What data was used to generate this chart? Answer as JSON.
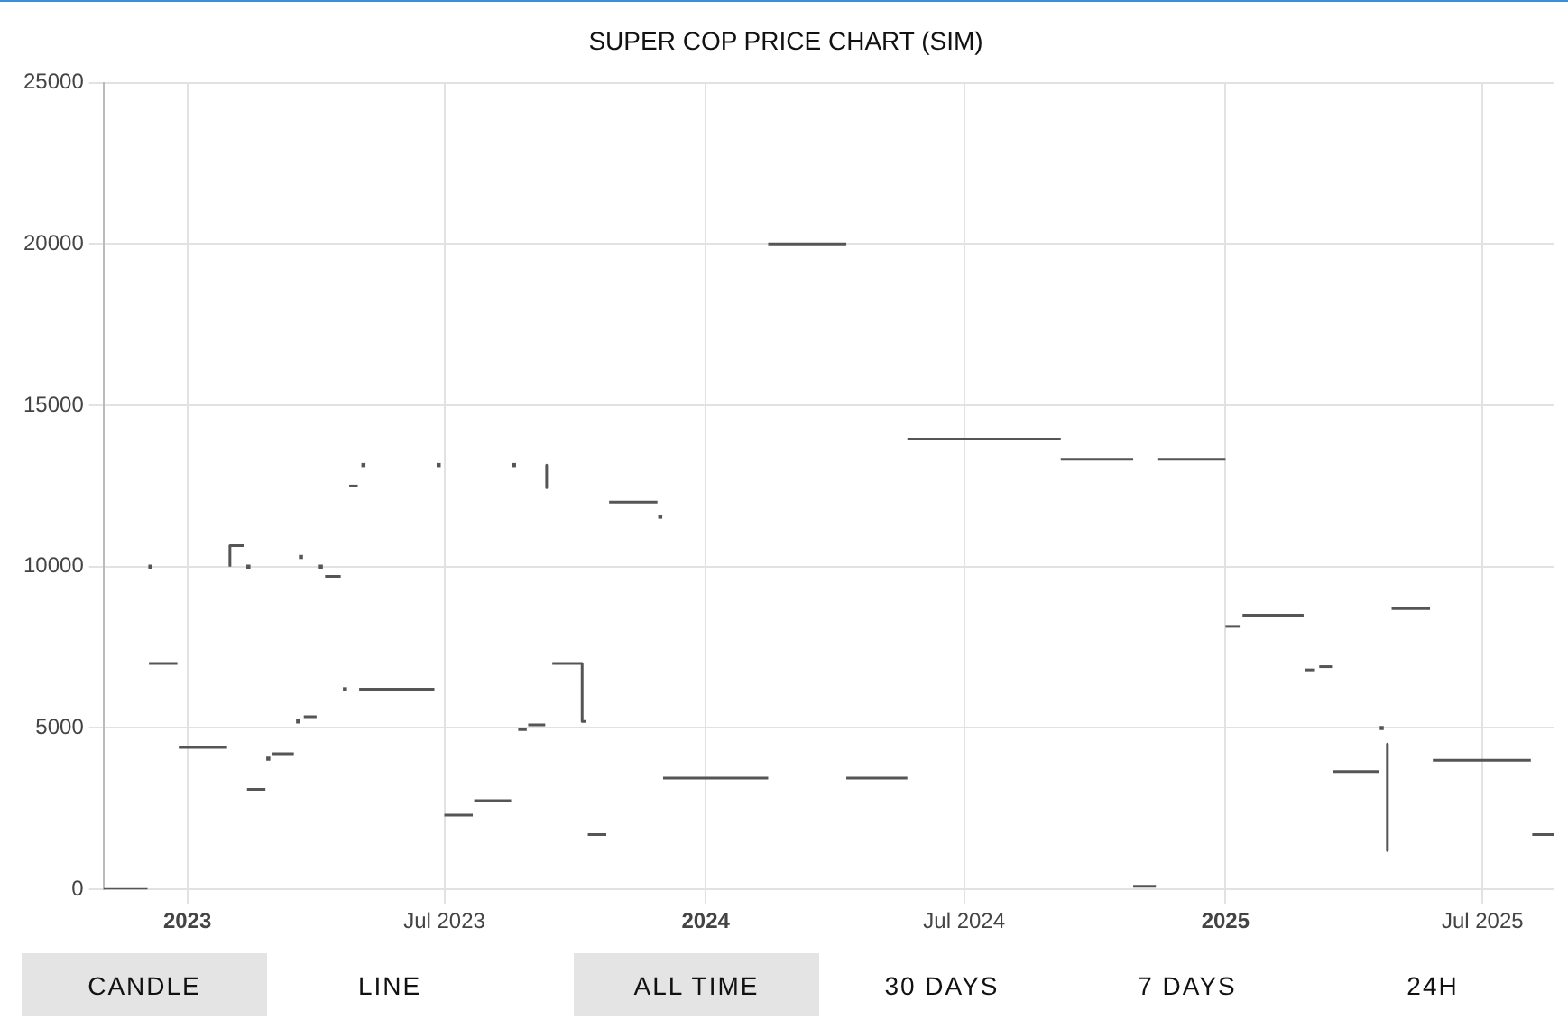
{
  "chart_data": {
    "type": "line",
    "title": "SUPER COP PRICE CHART (SIM)",
    "series": [
      {
        "color": "#555555",
        "x": [
          "2022-11-03",
          "2022-12-04"
        ],
        "values": [
          0,
          0
        ]
      },
      {
        "color": "#555555",
        "x": [
          "2022-12-05",
          "2022-12-25"
        ],
        "values": [
          7000,
          7000
        ]
      },
      {
        "color": "#555555",
        "x": [
          "2022-12-26",
          "2023-01-29"
        ],
        "values": [
          4400,
          4400
        ]
      },
      {
        "color": "#555555",
        "x": [
          "2023-01-31",
          "2023-01-31",
          "2023-02-10"
        ],
        "values": [
          10000,
          10650,
          10650
        ]
      },
      {
        "color": "#555555",
        "x": [
          "2023-02-12",
          "2023-02-25"
        ],
        "values": [
          3100,
          3100
        ]
      },
      {
        "color": "#555555",
        "x": [
          "2023-03-02",
          "2023-03-17"
        ],
        "values": [
          4200,
          4200
        ]
      },
      {
        "color": "#555555",
        "x": [
          "2023-03-24",
          "2023-04-02"
        ],
        "values": [
          5350,
          5350
        ]
      },
      {
        "color": "#555555",
        "x": [
          "2023-04-08",
          "2023-04-19"
        ],
        "values": [
          9700,
          9700
        ]
      },
      {
        "color": "#555555",
        "x": [
          "2023-04-25",
          "2023-05-01"
        ],
        "values": [
          12500,
          12500
        ]
      },
      {
        "color": "#555555",
        "x": [
          "2023-05-02",
          "2023-06-24"
        ],
        "values": [
          6200,
          6200
        ]
      },
      {
        "color": "#555555",
        "x": [
          "2023-07-01",
          "2023-07-21"
        ],
        "values": [
          2300,
          2300
        ]
      },
      {
        "color": "#555555",
        "x": [
          "2023-07-22",
          "2023-08-17"
        ],
        "values": [
          2750,
          2750
        ]
      },
      {
        "color": "#555555",
        "x": [
          "2023-08-22",
          "2023-08-28"
        ],
        "values": [
          4950,
          4950
        ]
      },
      {
        "color": "#555555",
        "x": [
          "2023-08-29",
          "2023-09-10"
        ],
        "values": [
          5100,
          5100
        ]
      },
      {
        "color": "#555555",
        "x": [
          "2023-09-11",
          "2023-09-11"
        ],
        "values": [
          13150,
          12450
        ]
      },
      {
        "color": "#555555",
        "x": [
          "2023-09-15",
          "2023-10-06",
          "2023-10-06",
          "2023-10-09"
        ],
        "values": [
          7000,
          7000,
          5200,
          5200
        ]
      },
      {
        "color": "#555555",
        "x": [
          "2023-10-10",
          "2023-10-23"
        ],
        "values": [
          1700,
          1700
        ]
      },
      {
        "color": "#555555",
        "x": [
          "2023-10-25",
          "2023-11-28"
        ],
        "values": [
          12000,
          12000
        ]
      },
      {
        "color": "#555555",
        "x": [
          "2023-12-02",
          "2024-02-14"
        ],
        "values": [
          3450,
          3450
        ]
      },
      {
        "color": "#555555",
        "x": [
          "2024-02-14",
          "2024-04-09"
        ],
        "values": [
          20000,
          20000
        ]
      },
      {
        "color": "#555555",
        "x": [
          "2024-04-09",
          "2024-05-22"
        ],
        "values": [
          3450,
          3450
        ]
      },
      {
        "color": "#555555",
        "x": [
          "2024-05-22",
          "2024-09-07"
        ],
        "values": [
          13950,
          13950
        ]
      },
      {
        "color": "#555555",
        "x": [
          "2024-09-07",
          "2024-10-28"
        ],
        "values": [
          13330,
          13330
        ]
      },
      {
        "color": "#555555",
        "x": [
          "2024-10-28",
          "2024-11-13"
        ],
        "values": [
          100,
          100
        ]
      },
      {
        "color": "#555555",
        "x": [
          "2024-11-14",
          "2025-01-01"
        ],
        "values": [
          13330,
          13330
        ]
      },
      {
        "color": "#555555",
        "x": [
          "2025-01-01",
          "2025-01-11"
        ],
        "values": [
          8150,
          8150
        ]
      },
      {
        "color": "#555555",
        "x": [
          "2025-01-13",
          "2025-02-25"
        ],
        "values": [
          8500,
          8500
        ]
      },
      {
        "color": "#555555",
        "x": [
          "2025-02-26",
          "2025-03-05"
        ],
        "values": [
          6800,
          6800
        ]
      },
      {
        "color": "#555555",
        "x": [
          "2025-03-08",
          "2025-03-17"
        ],
        "values": [
          6900,
          6900
        ]
      },
      {
        "color": "#555555",
        "x": [
          "2025-03-18",
          "2025-04-19"
        ],
        "values": [
          3650,
          3650
        ]
      },
      {
        "color": "#555555",
        "x": [
          "2025-04-25",
          "2025-04-25"
        ],
        "values": [
          4500,
          1200
        ]
      },
      {
        "color": "#555555",
        "x": [
          "2025-04-28",
          "2025-05-25"
        ],
        "values": [
          8700,
          8700
        ]
      },
      {
        "color": "#555555",
        "x": [
          "2025-05-27",
          "2025-08-04"
        ],
        "values": [
          4000,
          4000
        ]
      },
      {
        "color": "#555555",
        "x": [
          "2025-08-05",
          "2025-08-20"
        ],
        "values": [
          1700,
          1700
        ]
      },
      {
        "type": "scatter",
        "marker": "square",
        "color": "#555555",
        "x": [
          "2022-12-06",
          "2023-02-13",
          "2023-02-27",
          "2023-03-20",
          "2023-03-22",
          "2023-04-05",
          "2023-04-22",
          "2023-05-05",
          "2023-06-27",
          "2023-08-19",
          "2023-11-30",
          "2025-04-21"
        ],
        "values": [
          10000,
          10000,
          4050,
          5200,
          10300,
          10000,
          6200,
          13150,
          13150,
          13150,
          11550,
          5000
        ]
      }
    ],
    "xlim": [
      "2022-11-03",
      "2025-08-20"
    ],
    "xticks": [
      {
        "value": "2023-01-01",
        "label": "2023"
      },
      {
        "value": "2023-07-01",
        "label": "Jul 2023"
      },
      {
        "value": "2024-01-01",
        "label": "2024"
      },
      {
        "value": "2024-07-01",
        "label": "Jul 2024"
      },
      {
        "value": "2025-01-01",
        "label": "2025"
      },
      {
        "value": "2025-07-01",
        "label": "Jul 2025"
      }
    ],
    "ylim": [
      0,
      25000
    ],
    "yticks": [
      0,
      5000,
      10000,
      15000,
      20000,
      25000
    ],
    "grid": true,
    "marker": "none",
    "line_style": "solid",
    "annotations": [
      "CANDLE",
      "LINE",
      "ALL TIME",
      "30 DAYS",
      "7 DAYS",
      "24H"
    ]
  }
}
